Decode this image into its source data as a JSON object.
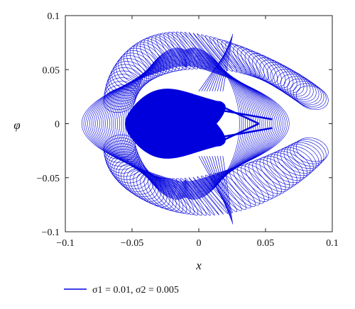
{
  "chart_data": {
    "type": "line",
    "title": "",
    "xlabel": "x",
    "ylabel": "φ",
    "xlim": [
      -0.1,
      0.1
    ],
    "ylim": [
      -0.1,
      0.1
    ],
    "x_ticks": [
      -0.1,
      -0.05,
      0,
      0.05,
      0.1
    ],
    "y_ticks": [
      -0.1,
      -0.05,
      0,
      0.05,
      0.1
    ],
    "x_tick_labels": [
      "−0.1",
      "−0.05",
      "0",
      "0.05",
      "0.1"
    ],
    "y_tick_labels": [
      "−0.1",
      "−0.05",
      "0",
      "0.05",
      "0.1"
    ],
    "grid": false,
    "legend_position": "bottom-left, below plot",
    "series": [
      {
        "name": "σ1 = 0.01, σ2 = 0.005",
        "color": "#0000dd",
        "description_points": {
          "outer_envelope": [
            [
              -0.072,
              0.005
            ],
            [
              -0.074,
              0.03
            ],
            [
              -0.065,
              0.055
            ],
            [
              -0.045,
              0.075
            ],
            [
              -0.02,
              0.092
            ],
            [
              0.0,
              0.095
            ],
            [
              0.018,
              0.09
            ],
            [
              0.035,
              0.075
            ],
            [
              0.05,
              0.06
            ],
            [
              0.06,
              0.045
            ],
            [
              0.068,
              0.035
            ],
            [
              0.072,
              0.03
            ],
            [
              0.06,
              0.022
            ],
            [
              0.05,
              0.015
            ],
            [
              0.04,
              0.008
            ],
            [
              0.03,
              0.003
            ],
            [
              0.025,
              0.0
            ],
            [
              0.03,
              -0.003
            ],
            [
              0.04,
              -0.008
            ],
            [
              0.05,
              -0.015
            ],
            [
              0.06,
              -0.022
            ],
            [
              0.072,
              -0.03
            ],
            [
              0.068,
              -0.035
            ],
            [
              0.06,
              -0.045
            ],
            [
              0.05,
              -0.06
            ],
            [
              0.035,
              -0.075
            ],
            [
              0.018,
              -0.09
            ],
            [
              0.0,
              -0.095
            ],
            [
              -0.02,
              -0.092
            ],
            [
              -0.045,
              -0.075
            ],
            [
              -0.065,
              -0.055
            ],
            [
              -0.074,
              -0.03
            ],
            [
              -0.072,
              -0.005
            ]
          ]
        }
      }
    ]
  },
  "legend": {
    "label_prefix": "σ",
    "label_text": "σ1 = 0.01, σ2 = 0.005"
  }
}
